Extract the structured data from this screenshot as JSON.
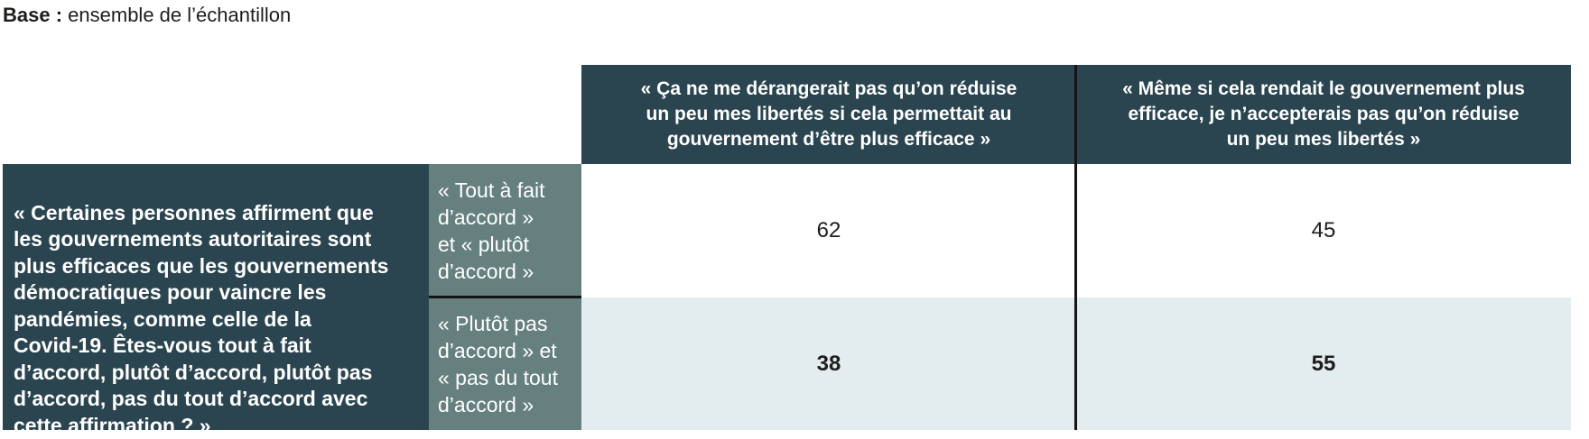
{
  "base_note": {
    "label_bold": "Base :",
    "label_regular": " ensemble de l’échantillon"
  },
  "table": {
    "column_headers": [
      "« Ça ne me dérangerait pas qu’on réduise\nun peu mes libertés si cela permettait au\ngouvernement d’être plus efficace »",
      "« Même si cela rendait le gouvernement plus\nefficace, je n’accepterais pas qu’on réduise\nun peu mes libertés »"
    ],
    "row_header": "« Certaines personnes affirment que\nles gouvernements autoritaires sont\nplus efficaces que les gouvernements\ndémocratiques pour vaincre les\npandémies, comme celle de la\nCovid-19. Êtes-vous tout à fait\nd’accord, plutôt d’accord, plutôt pas\nd’accord, pas du tout d’accord avec\ncette affirmation ? »",
    "sub_row_labels": [
      "« Tout à fait\nd’accord »\net « plutôt\nd’accord »",
      "« Plutôt pas\nd’accord » et\n« pas du tout\nd’accord »"
    ],
    "values": [
      [
        "62",
        "45"
      ],
      [
        "38",
        "55"
      ]
    ]
  },
  "colors": {
    "header_background": "#2b4550",
    "sub_row_background": "#65807f",
    "alt_row_background": "#e3ecee",
    "divider": "#141414",
    "header_text": "#ffffff",
    "body_text": "#1d1d1b"
  },
  "chart_data": {
    "type": "table",
    "title": "Base : ensemble de l’échantillon",
    "row_question": "« Certaines personnes affirment que les gouvernements autoritaires sont plus efficaces que les gouvernements démocratiques pour vaincre les pandémies, comme celle de la Covid-19. Êtes-vous tout à fait d’accord, plutôt d’accord, plutôt pas d’accord, pas du tout d’accord avec cette affirmation ? »",
    "columns": [
      "« Ça ne me dérangerait pas qu’on réduise un peu mes libertés si cela permettait au gouvernement d’être plus efficace »",
      "« Même si cela rendait le gouvernement plus efficace, je n’accepterais pas qu’on réduise un peu mes libertés »"
    ],
    "rows": [
      {
        "label": "« Tout à fait d’accord » et « plutôt d’accord »",
        "values": [
          62,
          45
        ]
      },
      {
        "label": "« Plutôt pas d’accord » et « pas du tout d’accord »",
        "values": [
          38,
          55
        ]
      }
    ]
  }
}
